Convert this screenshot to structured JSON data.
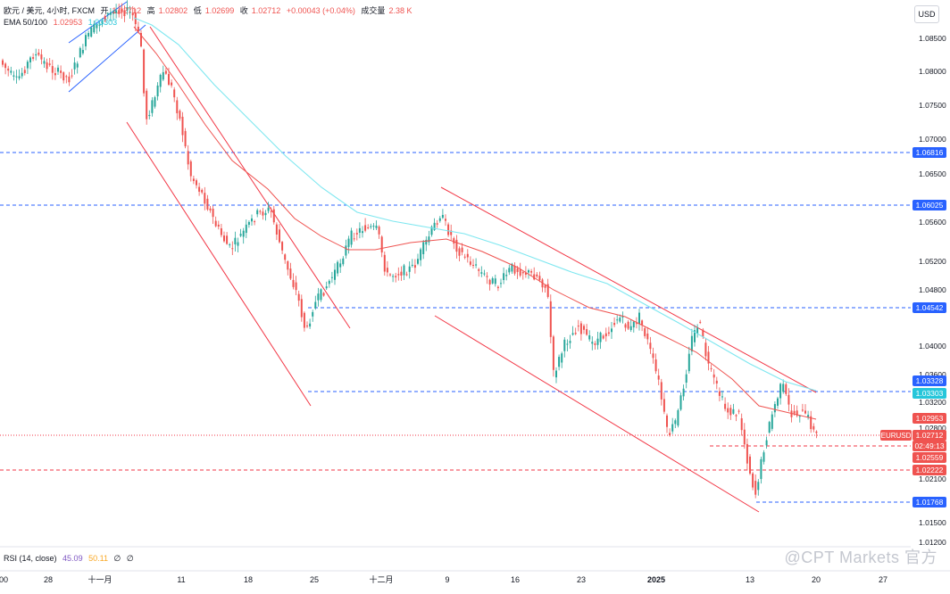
{
  "legend": {
    "symbol": "欧元 / 美元, 4小时, FXCM",
    "open_label": "开",
    "open_value": "1.02712",
    "high_label": "高",
    "high_value": "1.02802",
    "low_label": "低",
    "low_value": "1.02699",
    "close_label": "收",
    "close_value": "1.02712",
    "change": "+0.00043 (+0.04%)",
    "volume_label": "成交量",
    "volume_value": "2.38 K",
    "ema_label": "EMA 50/100",
    "ema50_value": "1.02953",
    "ema100_value": "1.03303"
  },
  "currency_button": "USD",
  "rsi": {
    "label": "RSI (14, close)",
    "value1": "45.09",
    "value2": "50.11",
    "value3": "∅",
    "value4": "∅"
  },
  "watermark": "@CPT Markets 官方",
  "colors": {
    "up": "#26a69a",
    "down": "#ef5350",
    "ema50": "#ef5350",
    "ema100": "#7ee7f0",
    "blue_line": "#2962ff",
    "red_line": "#f23645",
    "channel": "#f23645",
    "blue_channel": "#2962ff"
  },
  "chart_data": {
    "type": "candlestick",
    "symbol": "EURUSD",
    "timeframe": "4h",
    "y_ticks": [
      "1.08500",
      "1.08000",
      "1.07500",
      "1.07000",
      "1.06500",
      "1.05600",
      "1.05200",
      "1.04800",
      "1.04000",
      "1.03600",
      "1.03200",
      "1.02800",
      "1.02100",
      "1.01500",
      "1.01200"
    ],
    "x_ticks": [
      "00",
      "28",
      "十一月",
      "11",
      "18",
      "25",
      "十二月",
      "9",
      "16",
      "23",
      "2025",
      "13",
      "20",
      "27"
    ],
    "price_labels": [
      {
        "text": "1.06816",
        "kind": "blue"
      },
      {
        "text": "1.06025",
        "kind": "blue"
      },
      {
        "text": "1.04542",
        "kind": "blue"
      },
      {
        "text": "1.03328",
        "kind": "blue"
      },
      {
        "text": "1.03303",
        "kind": "ema100"
      },
      {
        "text": "1.02953",
        "kind": "ema50"
      },
      {
        "text": "EURUSD",
        "kind": "symbol"
      },
      {
        "text": "1.02712",
        "kind": "last"
      },
      {
        "text": "02:49:13",
        "kind": "countdown"
      },
      {
        "text": "1.02559",
        "kind": "red"
      },
      {
        "text": "1.02222",
        "kind": "red"
      },
      {
        "text": "1.01768",
        "kind": "blue"
      }
    ],
    "horizontal_levels": [
      {
        "price": 1.06816,
        "style": "blue-dashed"
      },
      {
        "price": 1.06025,
        "style": "blue-dashed"
      },
      {
        "price": 1.04542,
        "style": "blue-dashed"
      },
      {
        "price": 1.03328,
        "style": "blue-dashed"
      },
      {
        "price": 1.02712,
        "style": "last-dotted"
      },
      {
        "price": 1.02559,
        "style": "red-dashed"
      },
      {
        "price": 1.02222,
        "style": "red-dashed"
      },
      {
        "price": 1.01768,
        "style": "blue-dashed"
      }
    ],
    "price_range": [
      1.0115,
      1.0905
    ]
  }
}
